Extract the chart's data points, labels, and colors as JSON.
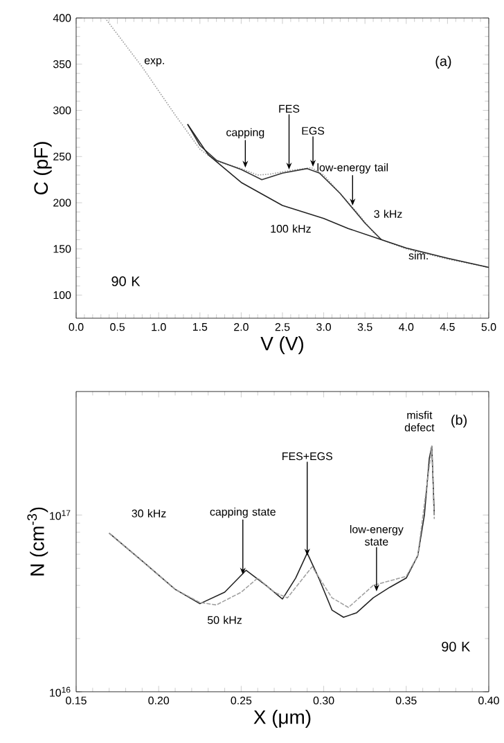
{
  "chart_data": [
    {
      "type": "line",
      "xlabel": "V (V)",
      "ylabel": "C (pF)",
      "xlim": [
        0,
        5
      ],
      "ylim": [
        75,
        400
      ],
      "xticks": [
        {
          "value": 0,
          "label": "0.0"
        },
        {
          "value": 0.5,
          "label": "0.5"
        },
        {
          "value": 1,
          "label": "1.0"
        },
        {
          "value": 1.5,
          "label": "1.5"
        },
        {
          "value": 2,
          "label": "2.0"
        },
        {
          "value": 2.5,
          "label": "2.5"
        },
        {
          "value": 3,
          "label": "3.0"
        },
        {
          "value": 3.5,
          "label": "3.5"
        },
        {
          "value": 4,
          "label": "4.0"
        },
        {
          "value": 4.5,
          "label": "4.5"
        },
        {
          "value": 5,
          "label": "5.0"
        }
      ],
      "yticks": [
        100,
        150,
        200,
        250,
        300,
        350,
        400
      ],
      "series": [
        {
          "color": "#9a9a9a",
          "line_style": "dotted",
          "x": [
            0.35,
            0.8,
            1.2,
            1.5,
            1.7,
            2.0,
            2.2,
            2.35,
            2.6,
            2.85,
            3.0,
            3.2,
            3.4,
            3.6,
            3.7,
            4.0,
            4.5,
            5.0
          ],
          "values": [
            400,
            347,
            295,
            258,
            245,
            237,
            230,
            231,
            235,
            238,
            230,
            210,
            190,
            168,
            160,
            150,
            139,
            130
          ]
        },
        {
          "color": "#333333",
          "line_style": "solid",
          "x": [
            1.35,
            1.5,
            1.7,
            2.0,
            2.25,
            2.5,
            2.8,
            2.95,
            3.2,
            3.5,
            3.7
          ],
          "values": [
            285,
            262,
            246,
            236,
            225,
            232,
            237,
            232,
            210,
            178,
            160
          ]
        },
        {
          "color": "#222222",
          "line_style": "solid",
          "x": [
            1.35,
            1.6,
            2.0,
            2.5,
            3.0,
            3.3,
            3.7,
            4.0,
            4.5,
            5.0
          ],
          "values": [
            285,
            252,
            222,
            197,
            183,
            172,
            160,
            151,
            140,
            130
          ]
        }
      ],
      "annotations": [
        "exp.",
        "(a)",
        "3 kHz",
        "100 kHz",
        "sim.",
        "90 K",
        {
          "text": "capping",
          "x": 2.05,
          "y": 238
        },
        {
          "text": "FES",
          "x": 2.58,
          "y": 236
        },
        {
          "text": "EGS",
          "x": 2.87,
          "y": 239
        },
        {
          "text": "low-energy tail",
          "x": 3.35,
          "y": 197
        }
      ]
    },
    {
      "type": "line",
      "xlabel": "X (μm)",
      "ylabel": "N (cm$^{-3}$)",
      "log": "y",
      "xlim": [
        0.15,
        0.4
      ],
      "ylim": [
        1e+16,
        5e+17
      ],
      "xticks": [
        {
          "value": 0.15,
          "label": "0.15"
        },
        {
          "value": 0.2,
          "label": "0.20"
        },
        {
          "value": 0.25,
          "label": "0.25"
        },
        {
          "value": 0.3,
          "label": "0.30"
        },
        {
          "value": 0.35,
          "label": "0.35"
        },
        {
          "value": 0.4,
          "label": "0.40"
        }
      ],
      "yticks": [
        {
          "value": 1e+16,
          "label": "10$^{16}$"
        },
        {
          "value": 1e+17,
          "label": "10$^{17}$"
        }
      ],
      "series": [
        {
          "color": "#222222",
          "line_style": "solid",
          "x": [
            0.17,
            0.19,
            0.21,
            0.225,
            0.24,
            0.253,
            0.265,
            0.275,
            0.283,
            0.29,
            0.297,
            0.305,
            0.312,
            0.32,
            0.33,
            0.34,
            0.35,
            0.357,
            0.361,
            0.364,
            0.3655,
            0.367
          ],
          "values": [
            7.9e+16,
            5.5e+16,
            3.8e+16,
            3.15e+16,
            3.66e+16,
            4.87e+16,
            4e+16,
            3.35e+16,
            4.4e+16,
            6.1e+16,
            4.4e+16,
            2.9e+16,
            2.64e+16,
            2.8e+16,
            3.4e+16,
            3.9e+16,
            4.4e+16,
            5.9e+16,
            1e+17,
            2.1e+17,
            2.45e+17,
            1e+17
          ]
        },
        {
          "color": "#a0a0a0",
          "line_style": "dashed",
          "x": [
            0.17,
            0.19,
            0.21,
            0.225,
            0.235,
            0.25,
            0.26,
            0.27,
            0.278,
            0.293,
            0.305,
            0.315,
            0.33,
            0.35,
            0.357,
            0.364,
            0.3655,
            0.367
          ],
          "values": [
            7.9e+16,
            5.5e+16,
            3.8e+16,
            3.2e+16,
            3.1e+16,
            3.66e+16,
            4.4e+16,
            3.66e+16,
            3.4e+16,
            5.1e+16,
            3.4e+16,
            3e+16,
            4e+16,
            4.5e+16,
            5.9e+16,
            1.9e+17,
            2.45e+17,
            9.5e+16
          ]
        }
      ],
      "annotations": [
        "(b)",
        "misfit defect",
        "30 kHz",
        "50 kHz",
        "90 K",
        {
          "text": "capping state",
          "x": 0.251,
          "y": 4.6e+16
        },
        {
          "text": "FES+EGS",
          "x": 0.29,
          "y": 5.9e+16
        },
        {
          "text": "low-energy state",
          "x": 0.332,
          "y": 3.7e+16
        }
      ]
    }
  ]
}
